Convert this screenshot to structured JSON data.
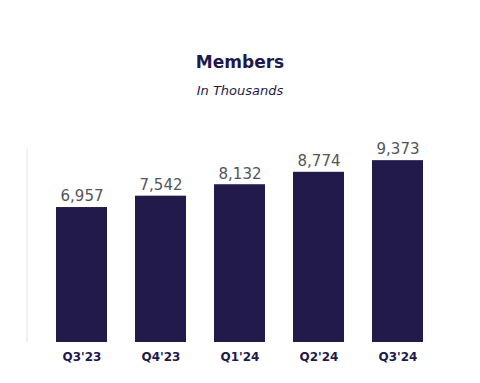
{
  "chart_data": {
    "type": "bar",
    "title": "Members",
    "subtitle": "In Thousands",
    "categories": [
      "Q3'23",
      "Q4'23",
      "Q1'24",
      "Q2'24",
      "Q3'24"
    ],
    "values": [
      6957,
      7542,
      8132,
      8774,
      9373
    ],
    "value_labels": [
      "6,957",
      "7,542",
      "8,132",
      "8,774",
      "9,373"
    ],
    "color": "#211a4a",
    "ylim": [
      0,
      10000
    ],
    "grid": false,
    "data_labels": true,
    "tick_labels": "x"
  }
}
